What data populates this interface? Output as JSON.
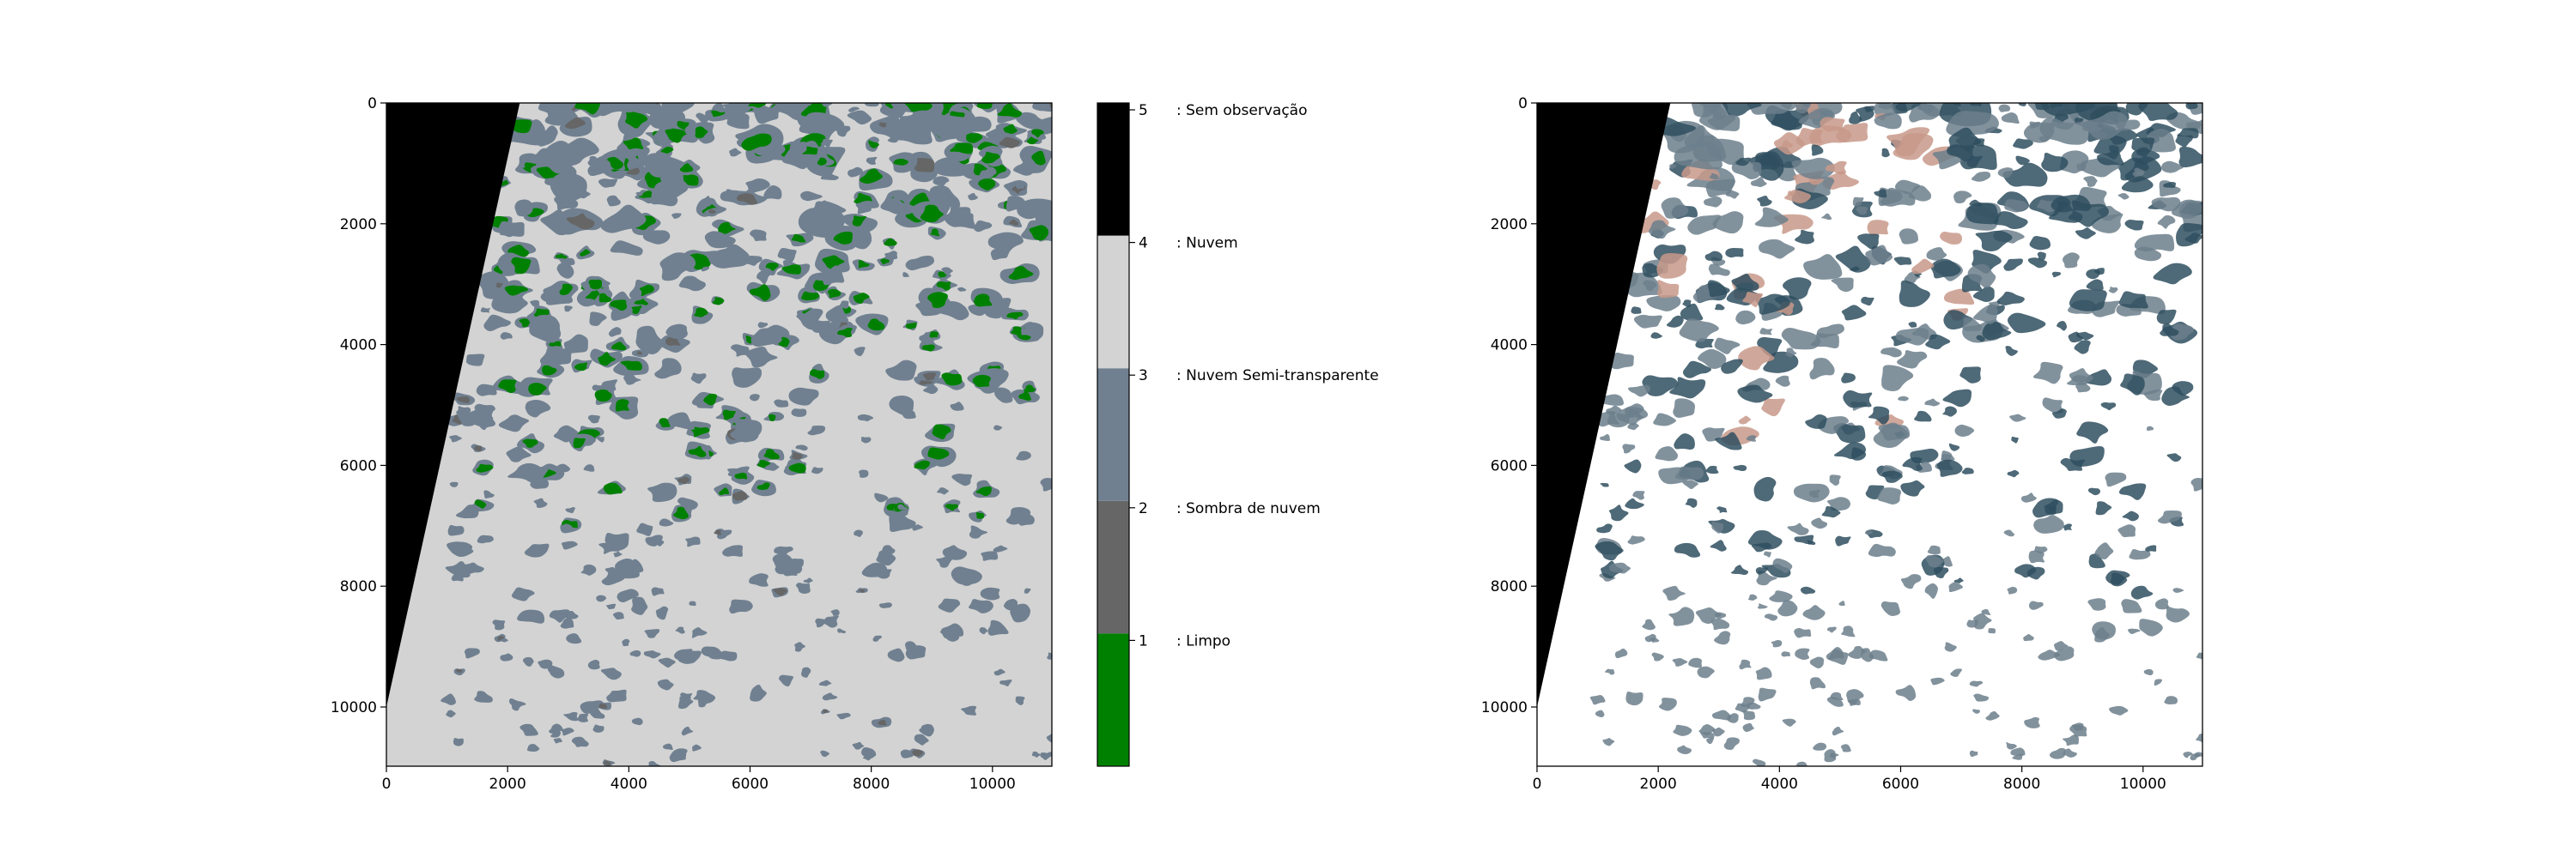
{
  "chart_data": [
    {
      "type": "heatmap",
      "title": "",
      "xlabel": "",
      "ylabel": "",
      "xlim": [
        0,
        10980
      ],
      "ylim": [
        10980,
        0
      ],
      "x_ticks": [
        0,
        2000,
        4000,
        6000,
        8000,
        10000
      ],
      "y_ticks": [
        0,
        2000,
        4000,
        6000,
        8000,
        10000
      ],
      "x_tick_labels": [
        "0",
        "2000",
        "4000",
        "6000",
        "8000",
        "10000"
      ],
      "y_tick_labels": [
        "0",
        "2000",
        "4000",
        "6000",
        "8000",
        "10000"
      ],
      "no_data_region": [
        [
          0,
          0
        ],
        [
          2200,
          0
        ],
        [
          0,
          10000
        ]
      ],
      "dominant_class": 4,
      "colorbar": {
        "ticks": [
          1,
          2,
          3,
          4,
          5
        ],
        "tick_labels": [
          "1",
          "2",
          "3",
          "4",
          "5"
        ],
        "classes": [
          {
            "value": 1,
            "label": ": Limpo",
            "color": "#008000"
          },
          {
            "value": 2,
            "label": ": Sombra de nuvem",
            "color": "#666666"
          },
          {
            "value": 3,
            "label": ": Nuvem Semi-transparente",
            "color": "#708090"
          },
          {
            "value": 4,
            "label": ": Nuvem",
            "color": "#d3d3d3"
          },
          {
            "value": 5,
            "label": ": Sem observação",
            "color": "#000000"
          }
        ]
      }
    },
    {
      "type": "heatmap",
      "title": "",
      "xlabel": "",
      "ylabel": "",
      "xlim": [
        0,
        10980
      ],
      "ylim": [
        10980,
        0
      ],
      "x_ticks": [
        0,
        2000,
        4000,
        6000,
        8000,
        10000
      ],
      "y_ticks": [
        0,
        2000,
        4000,
        6000,
        8000,
        10000
      ],
      "x_tick_labels": [
        "0",
        "2000",
        "4000",
        "6000",
        "8000",
        "10000"
      ],
      "y_tick_labels": [
        "0",
        "2000",
        "4000",
        "6000",
        "8000",
        "10000"
      ],
      "no_data_region": [
        [
          0,
          0
        ],
        [
          2200,
          0
        ],
        [
          0,
          10000
        ]
      ],
      "colors": {
        "background": "#ffffff",
        "dark": "#2f4f5f",
        "tan": "#c8998a",
        "nodata": "#000000"
      }
    }
  ]
}
